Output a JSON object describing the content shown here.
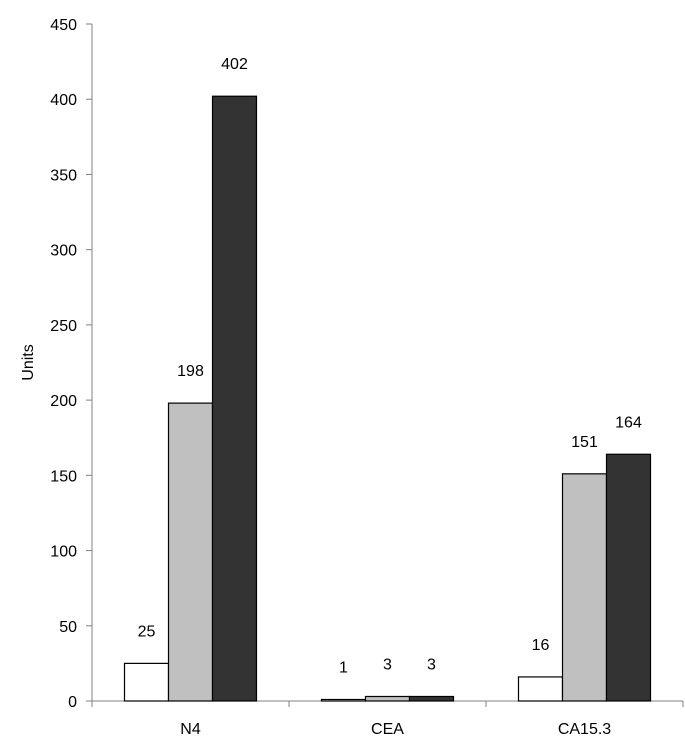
{
  "chart_data": {
    "type": "bar",
    "title": "",
    "xlabel": "",
    "ylabel": "Units",
    "categories": [
      "N4",
      "CEA",
      "CA15.3"
    ],
    "series": [
      {
        "values": [
          25,
          1,
          16
        ],
        "color": "#ffffff"
      },
      {
        "values": [
          198,
          3,
          151
        ],
        "color": "#c0c0c0"
      },
      {
        "values": [
          402,
          3,
          164
        ],
        "color": "#333333"
      }
    ],
    "ylim": [
      0,
      450
    ],
    "yticks": [
      "0",
      "50",
      "100",
      "150",
      "200",
      "250",
      "300",
      "350",
      "400",
      "450"
    ],
    "grid": false,
    "legend": "none",
    "data_labels": [
      [
        "25",
        "1",
        "16"
      ],
      [
        "198",
        "3",
        "151"
      ],
      [
        "402",
        "3",
        "164"
      ]
    ]
  }
}
